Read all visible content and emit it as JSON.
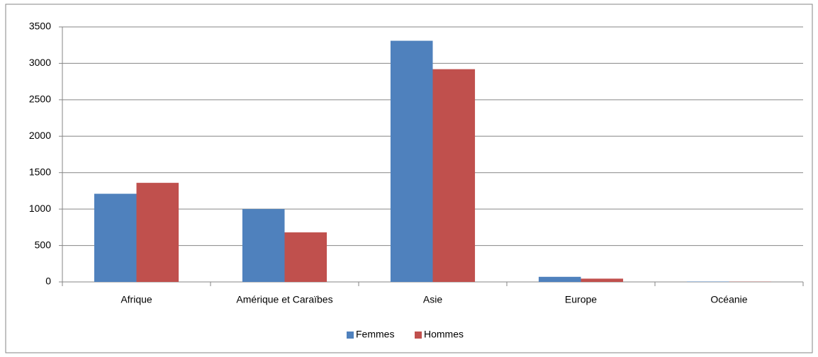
{
  "chart_data": {
    "type": "bar",
    "categories": [
      "Afrique",
      "Amérique et Caraïbes",
      "Asie",
      "Europe",
      "Océanie"
    ],
    "series": [
      {
        "name": "Femmes",
        "color": "#4f81bd",
        "values": [
          1210,
          1000,
          3310,
          70,
          5
        ]
      },
      {
        "name": "Hommes",
        "color": "#c0504d",
        "values": [
          1360,
          680,
          2920,
          45,
          3
        ]
      }
    ],
    "ylim": [
      0,
      3500
    ],
    "yticks": [
      0,
      500,
      1000,
      1500,
      2000,
      2500,
      3000,
      3500
    ],
    "grid": true,
    "legend": "bottom"
  }
}
